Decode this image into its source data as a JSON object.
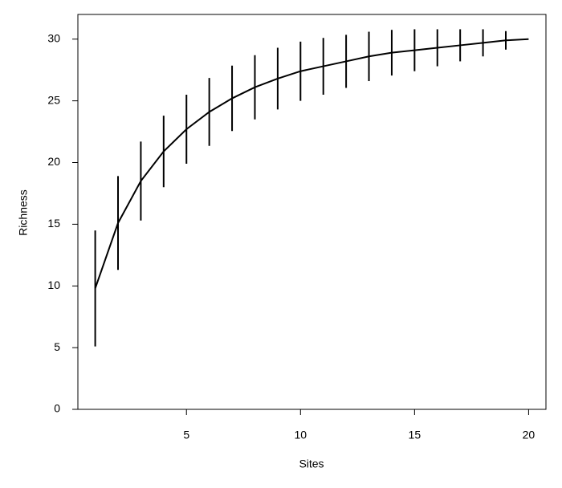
{
  "chart_data": {
    "type": "errorbar-line",
    "x_label": "Sites",
    "y_label": "Richness",
    "x": [
      1,
      2,
      3,
      4,
      5,
      6,
      7,
      8,
      9,
      10,
      11,
      12,
      13,
      14,
      15,
      16,
      17,
      18,
      19,
      20
    ],
    "values": [
      9.8,
      15.1,
      18.5,
      20.9,
      22.7,
      24.1,
      25.2,
      26.1,
      26.8,
      27.4,
      27.8,
      28.2,
      28.6,
      28.9,
      29.1,
      29.3,
      29.5,
      29.7,
      29.9,
      30
    ],
    "errors": [
      4.7,
      3.8,
      3.2,
      2.9,
      2.8,
      2.75,
      2.65,
      2.6,
      2.5,
      2.4,
      2.3,
      2.15,
      2.0,
      1.85,
      1.7,
      1.5,
      1.3,
      1.1,
      0.75,
      0
    ],
    "color": "#000000",
    "xlim": [
      0.24,
      20.76
    ],
    "ylim": [
      0,
      32
    ],
    "xticks": [
      5,
      10,
      15,
      20
    ],
    "yticks": [
      0,
      5,
      10,
      15,
      20,
      25,
      30
    ]
  }
}
